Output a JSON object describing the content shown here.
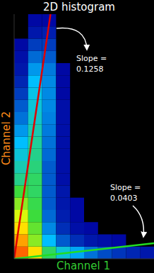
{
  "chart_data": {
    "type": "histogram2d",
    "title": "2D histogram",
    "x_label": "Channel 1",
    "y_label": "Channel 2",
    "x_label_color": "#33cc33",
    "y_label_color": "#ff8c1a",
    "xlim": [
      0,
      1
    ],
    "ylim": [
      0,
      1
    ],
    "tick_labels": false,
    "grid": false,
    "xbins": [
      0,
      0.1,
      0.2,
      0.3,
      0.4,
      0.5,
      0.6,
      0.7,
      0.8,
      0.9,
      1
    ],
    "ybins": [
      0,
      0.05,
      0.1,
      0.15,
      0.2,
      0.25,
      0.3,
      0.35,
      0.4,
      0.45,
      0.5,
      0.55,
      0.6,
      0.65,
      0.7,
      0.75,
      0.8,
      0.85,
      0.9,
      0.95,
      1
    ],
    "zlim": [
      0,
      100
    ],
    "z": [
      [
        100,
        80,
        45,
        30,
        22,
        15,
        10,
        7,
        5,
        3
      ],
      [
        90,
        60,
        25,
        12,
        6,
        3,
        2,
        1,
        0,
        0
      ],
      [
        80,
        55,
        18,
        6,
        2,
        1,
        0,
        0,
        0,
        0
      ],
      [
        70,
        50,
        14,
        4,
        1,
        0,
        0,
        0,
        0,
        0
      ],
      [
        60,
        48,
        12,
        3,
        1,
        0,
        0,
        0,
        0,
        0
      ],
      [
        50,
        45,
        12,
        3,
        0,
        0,
        0,
        0,
        0,
        0
      ],
      [
        40,
        45,
        12,
        2,
        0,
        0,
        0,
        0,
        0,
        0
      ],
      [
        35,
        42,
        12,
        2,
        0,
        0,
        0,
        0,
        0,
        0
      ],
      [
        30,
        40,
        14,
        2,
        0,
        0,
        0,
        0,
        0,
        0
      ],
      [
        25,
        38,
        15,
        2,
        0,
        0,
        0,
        0,
        0,
        0
      ],
      [
        20,
        35,
        16,
        2,
        0,
        0,
        0,
        0,
        0,
        0
      ],
      [
        15,
        32,
        17,
        2,
        0,
        0,
        0,
        0,
        0,
        0
      ],
      [
        12,
        30,
        18,
        2,
        0,
        0,
        0,
        0,
        0,
        0
      ],
      [
        8,
        28,
        18,
        1,
        0,
        0,
        0,
        0,
        0,
        0
      ],
      [
        5,
        25,
        18,
        1,
        0,
        0,
        0,
        0,
        0,
        0
      ],
      [
        3,
        20,
        16,
        1,
        0,
        0,
        0,
        0,
        0,
        0
      ],
      [
        2,
        14,
        12,
        0,
        0,
        0,
        0,
        0,
        0,
        0
      ],
      [
        1,
        8,
        8,
        0,
        0,
        0,
        0,
        0,
        0,
        0
      ],
      [
        0,
        3,
        4,
        0,
        0,
        0,
        0,
        0,
        0,
        0
      ],
      [
        0,
        1,
        1,
        0,
        0,
        0,
        0,
        0,
        0,
        0
      ]
    ],
    "lines": [
      {
        "x": [
          0,
          0.26
        ],
        "y": [
          0,
          1
        ],
        "color": "#e00000"
      },
      {
        "x": [
          0,
          1
        ],
        "y": [
          0,
          0.064
        ],
        "color": "#22dd22"
      }
    ],
    "annotations": [
      {
        "text": "Slope =",
        "value": 0.1258
      },
      {
        "text": "Slope =",
        "value": 0.0403
      }
    ]
  }
}
